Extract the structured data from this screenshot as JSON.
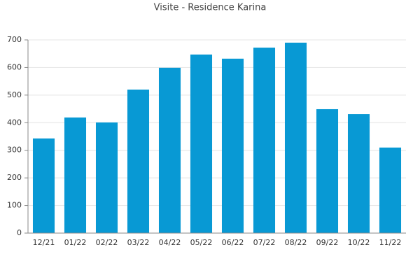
{
  "chart_data": {
    "type": "bar",
    "title": "Visite - Residence Karina",
    "categories": [
      "12/21",
      "01/22",
      "02/22",
      "03/22",
      "04/22",
      "05/22",
      "06/22",
      "07/22",
      "08/22",
      "09/22",
      "10/22",
      "11/22"
    ],
    "values": [
      343,
      419,
      401,
      520,
      599,
      647,
      632,
      672,
      690,
      449,
      431,
      310
    ],
    "color": "#0899d4",
    "ylim": [
      0,
      700
    ],
    "yticks": [
      0,
      100,
      200,
      300,
      400,
      500,
      600,
      700
    ],
    "grid": true
  }
}
